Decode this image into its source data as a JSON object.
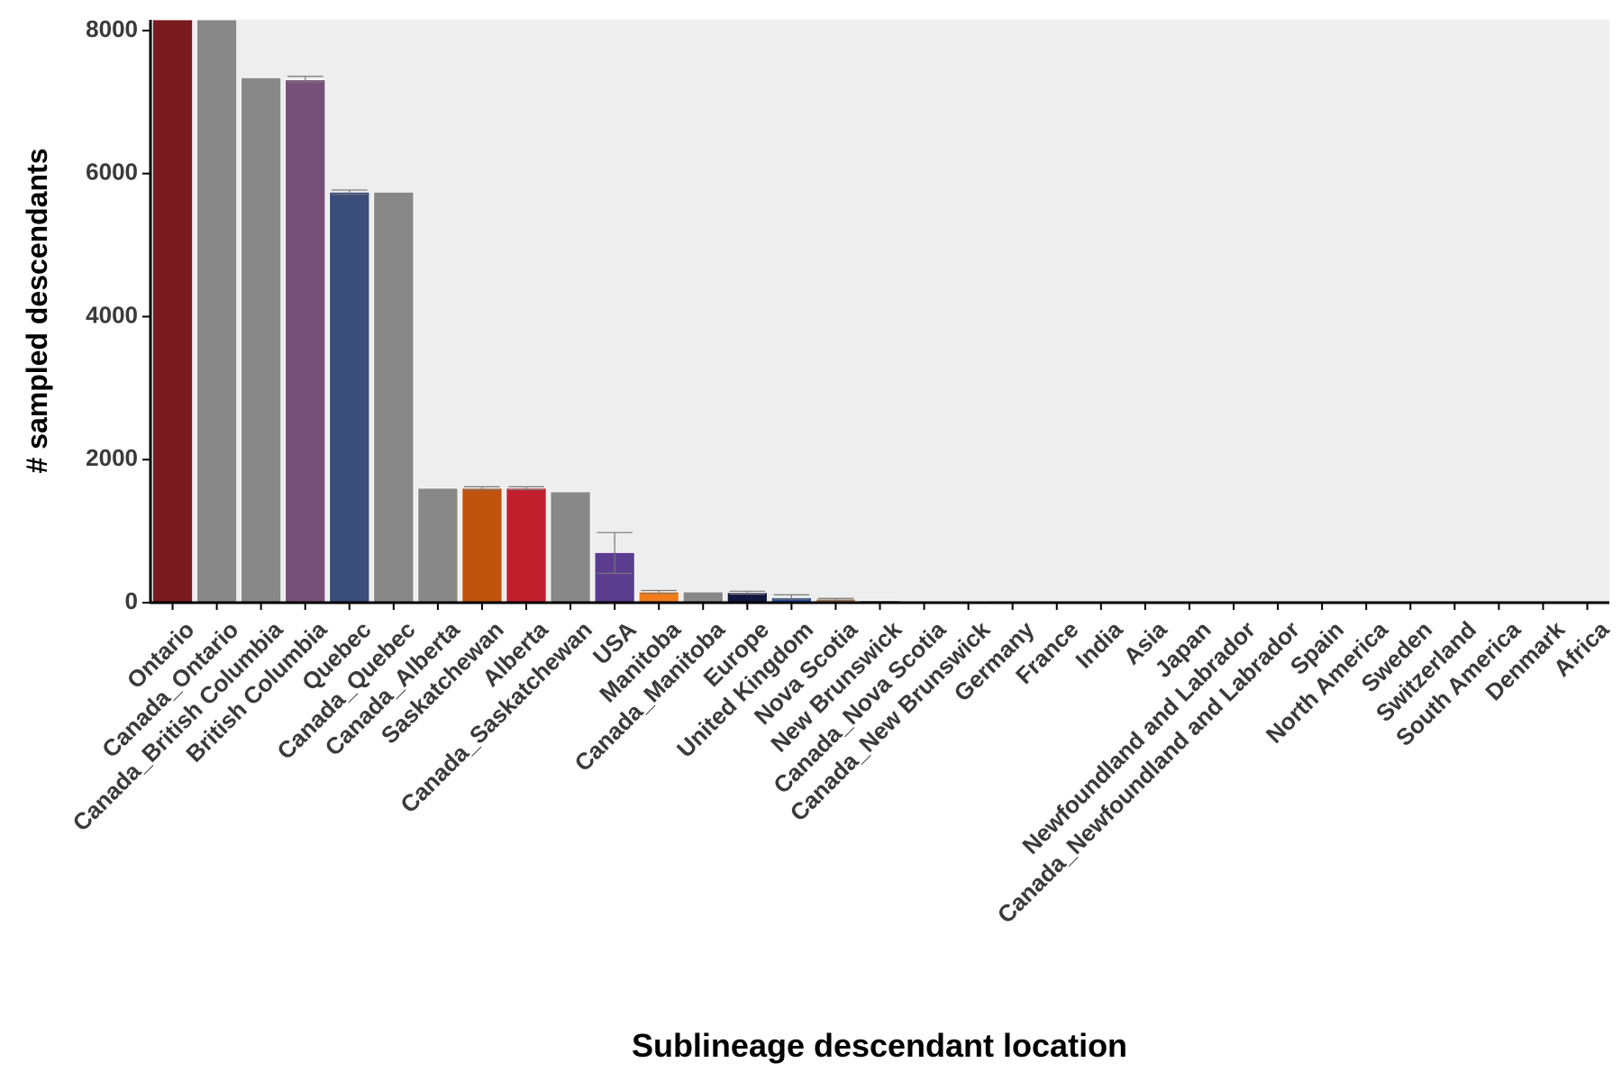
{
  "chart_data": {
    "type": "bar",
    "title": "",
    "xlabel": "Sublineage descendant location",
    "ylabel": "# sampled descendants",
    "ylim": [
      0,
      8150
    ],
    "yticks": [
      0,
      2000,
      4000,
      6000,
      8000
    ],
    "grid": false,
    "legend": "none",
    "panel_background": "#eeeeee",
    "categories": [
      "Ontario",
      "Canada_Ontario",
      "Canada_British Columbia",
      "British Columbia",
      "Quebec",
      "Canada_Quebec",
      "Canada_Alberta",
      "Saskatchewan",
      "Alberta",
      "Canada_Saskatchewan",
      "USA",
      "Manitoba",
      "Canada_Manitoba",
      "Europe",
      "United Kingdom",
      "Nova Scotia",
      "New Brunswick",
      "Canada_Nova Scotia",
      "Canada_New Brunswick",
      "Germany",
      "France",
      "India",
      "Asia",
      "Japan",
      "Newfoundland and Labrador",
      "Canada_Newfoundland and Labrador",
      "Spain",
      "North America",
      "Sweden",
      "Switzerland",
      "South America",
      "Denmark",
      "Africa"
    ],
    "values": [
      8150,
      8150,
      7340,
      7310,
      5740,
      5740,
      1600,
      1600,
      1600,
      1550,
      700,
      150,
      150,
      140,
      70,
      50,
      30,
      25,
      20,
      15,
      12,
      10,
      8,
      7,
      6,
      5,
      4,
      3,
      3,
      2,
      2,
      1,
      1
    ],
    "error_low": [
      null,
      null,
      null,
      7280,
      5710,
      null,
      null,
      1580,
      1580,
      null,
      410,
      130,
      null,
      120,
      50,
      35,
      null,
      null,
      null,
      null,
      null,
      null,
      null,
      null,
      null,
      null,
      null,
      null,
      null,
      null,
      null,
      null,
      null
    ],
    "error_high": [
      null,
      null,
      null,
      7360,
      5770,
      null,
      null,
      1620,
      1620,
      null,
      980,
      170,
      null,
      160,
      110,
      60,
      null,
      null,
      null,
      null,
      null,
      null,
      null,
      null,
      null,
      null,
      null,
      null,
      null,
      null,
      null,
      null,
      null
    ],
    "colors": [
      "#7a1a1f",
      "#888888",
      "#888888",
      "#77507a",
      "#3b4d7b",
      "#888888",
      "#888888",
      "#c0530e",
      "#c11f2c",
      "#888888",
      "#5a3d8f",
      "#f07c1c",
      "#888888",
      "#12173f",
      "#2c4f9c",
      "#c8823b",
      "#888888",
      "#888888",
      "#888888",
      "#888888",
      "#888888",
      "#888888",
      "#888888",
      "#888888",
      "#888888",
      "#888888",
      "#888888",
      "#888888",
      "#888888",
      "#888888",
      "#888888",
      "#888888",
      "#888888"
    ]
  }
}
